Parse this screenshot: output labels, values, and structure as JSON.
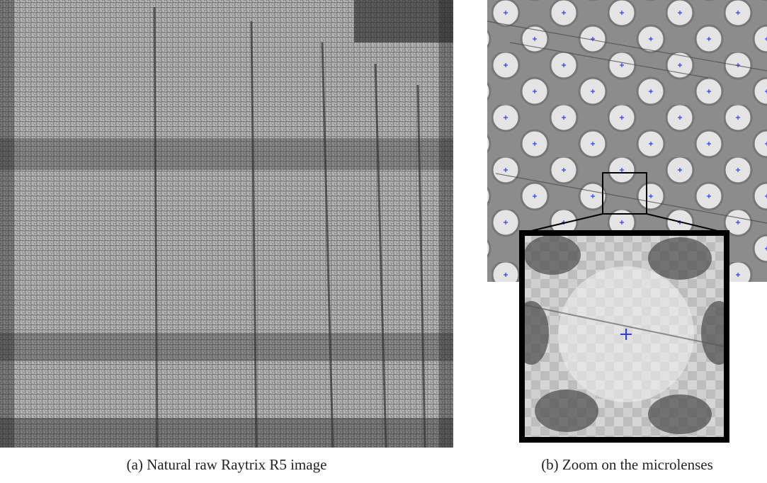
{
  "captions": {
    "a": "(a) Natural raw Raytrix R5 image",
    "b": "(b) Zoom on the microlenses"
  }
}
